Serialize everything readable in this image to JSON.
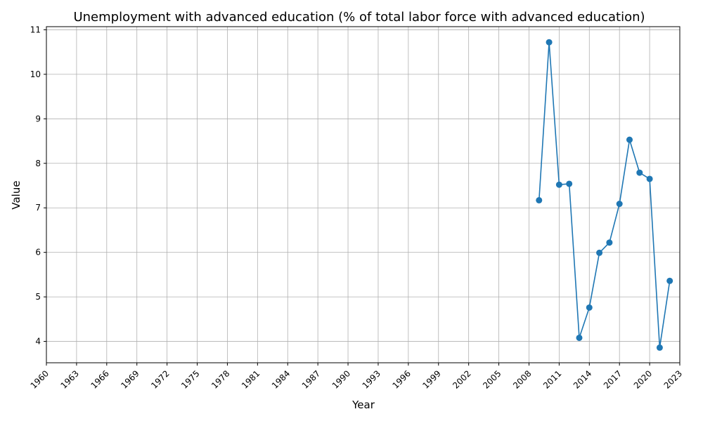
{
  "chart_data": {
    "type": "line",
    "title": "Unemployment with advanced education (% of total labor force with advanced education)",
    "xlabel": "Year",
    "ylabel": "Value",
    "xlim": [
      1960,
      2023
    ],
    "ylim": [
      3.52,
      11.07
    ],
    "x_ticks": [
      1960,
      1963,
      1966,
      1969,
      1972,
      1975,
      1978,
      1981,
      1984,
      1987,
      1990,
      1993,
      1996,
      1999,
      2002,
      2005,
      2008,
      2011,
      2014,
      2017,
      2020,
      2023
    ],
    "y_ticks": [
      4,
      5,
      6,
      7,
      8,
      9,
      10,
      11
    ],
    "grid": true,
    "color": "#1f77b4",
    "series": [
      {
        "x": [
          2009,
          2010,
          2011,
          2012,
          2013,
          2014,
          2015,
          2016,
          2017,
          2018,
          2019,
          2020,
          2021,
          2022
        ],
        "values": [
          7.17,
          10.72,
          7.52,
          7.54,
          4.08,
          4.76,
          5.99,
          6.22,
          7.09,
          8.53,
          7.79,
          7.65,
          3.86,
          5.36
        ]
      }
    ]
  }
}
